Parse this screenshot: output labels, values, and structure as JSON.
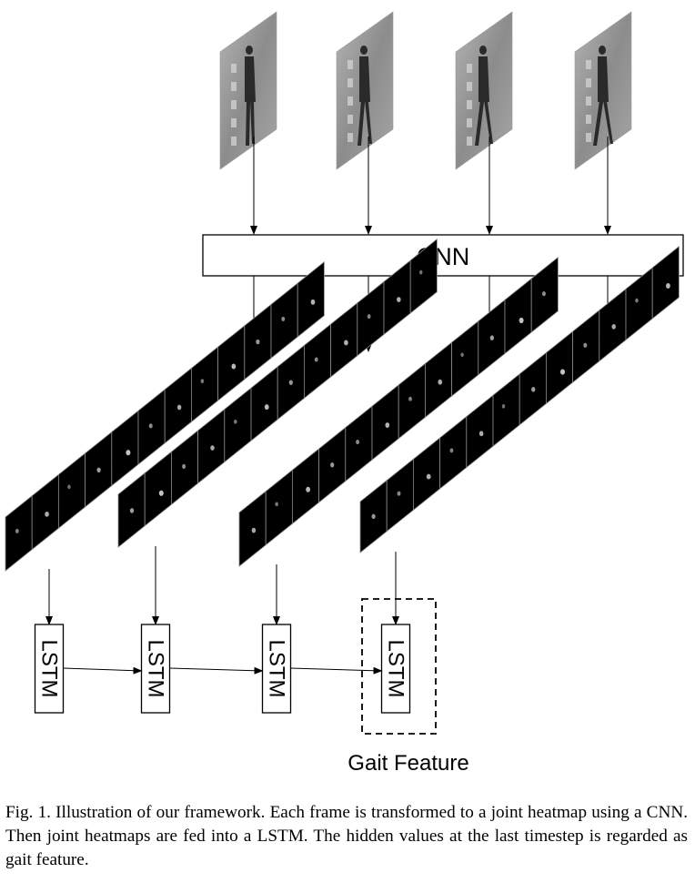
{
  "diagram": {
    "cnn_label": "CNN",
    "lstm_label": "LSTM",
    "output_label": "Gait Feature",
    "input_frame_count": 4,
    "heatmap_strips": 4,
    "heatmaps_per_strip": 12,
    "lstm_cells": 4
  },
  "caption": {
    "text": "Fig. 1.  Illustration of our framework. Each frame is transformed to a joint heatmap using a CNN. Then joint heatmaps are fed into a LSTM. The hidden values at the last timestep is regarded as gait feature."
  }
}
